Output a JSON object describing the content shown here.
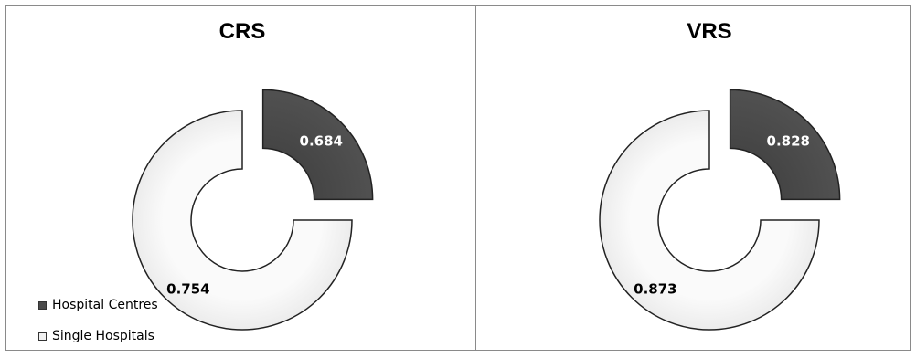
{
  "chart_data": [
    {
      "type": "pie",
      "title": "CRS",
      "series": [
        {
          "name": "Hospital Centres",
          "value": 0.684,
          "label": "0.684"
        },
        {
          "name": "Single Hospitals",
          "value": 0.754,
          "label": "0.754"
        }
      ]
    },
    {
      "type": "pie",
      "title": "VRS",
      "series": [
        {
          "name": "Hospital Centres",
          "value": 0.828,
          "label": "0.828"
        },
        {
          "name": "Single Hospitals",
          "value": 0.873,
          "label": "0.873"
        }
      ]
    }
  ],
  "legend": {
    "placement": "bottom-left",
    "items": [
      {
        "label": "Hospital Centres",
        "color": "#4a4a4a"
      },
      {
        "label": "Single Hospitals",
        "color": "#f0f0f0"
      }
    ]
  },
  "colors": {
    "hospital_centres": "#4a4a4a",
    "single_hospitals": "#f0f0f0",
    "outline": "#222222"
  }
}
